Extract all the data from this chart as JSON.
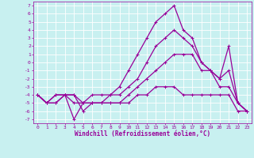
{
  "xlabel": "Windchill (Refroidissement éolien,°C)",
  "bg_color": "#c8f0f0",
  "grid_color": "#ffffff",
  "line_color": "#990099",
  "xlim": [
    -0.5,
    23.5
  ],
  "ylim": [
    -7.5,
    7.5
  ],
  "xticks": [
    0,
    1,
    2,
    3,
    4,
    5,
    6,
    7,
    8,
    9,
    10,
    11,
    12,
    13,
    14,
    15,
    16,
    17,
    18,
    19,
    20,
    21,
    22,
    23
  ],
  "yticks": [
    -7,
    -6,
    -5,
    -4,
    -3,
    -2,
    -1,
    0,
    1,
    2,
    3,
    4,
    5,
    6,
    7
  ],
  "line1_x": [
    0,
    1,
    2,
    3,
    4,
    5,
    6,
    7,
    8,
    9,
    10,
    11,
    12,
    13,
    14,
    15,
    16,
    17,
    18,
    19,
    20,
    21,
    22,
    23
  ],
  "line1_y": [
    -4,
    -5,
    -5,
    -4,
    -4,
    -6,
    -5,
    -5,
    -5,
    -5,
    -5,
    -4,
    -4,
    -3,
    -3,
    -3,
    -4,
    -4,
    -4,
    -4,
    -4,
    -4,
    -6,
    -6
  ],
  "line2_x": [
    0,
    1,
    2,
    3,
    4,
    5,
    6,
    7,
    8,
    9,
    10,
    11,
    12,
    13,
    14,
    15,
    16,
    17,
    18,
    19,
    20,
    21,
    22,
    23
  ],
  "line2_y": [
    -4,
    -5,
    -5,
    -4,
    -5,
    -5,
    -5,
    -5,
    -5,
    -5,
    -4,
    -3,
    -2,
    -1,
    0,
    1,
    1,
    1,
    -1,
    -1,
    -3,
    -3,
    -5,
    -6
  ],
  "line3_x": [
    0,
    1,
    2,
    3,
    4,
    5,
    6,
    7,
    8,
    9,
    10,
    11,
    12,
    13,
    14,
    15,
    16,
    17,
    18,
    19,
    20,
    21,
    22,
    23
  ],
  "line3_y": [
    -4,
    -5,
    -4,
    -4,
    -4,
    -5,
    -5,
    -5,
    -4,
    -4,
    -3,
    -2,
    0,
    2,
    3,
    4,
    3,
    2,
    0,
    -1,
    -2,
    -1,
    -5,
    -6
  ],
  "line4_x": [
    0,
    1,
    2,
    3,
    4,
    5,
    6,
    7,
    8,
    9,
    10,
    11,
    12,
    13,
    14,
    15,
    16,
    17,
    18,
    19,
    20,
    21,
    22,
    23
  ],
  "line4_y": [
    -4,
    -5,
    -4,
    -4,
    -7,
    -5,
    -4,
    -4,
    -4,
    -3,
    -1,
    1,
    3,
    5,
    6,
    7,
    4,
    3,
    0,
    -1,
    -2,
    2,
    -5,
    -6
  ]
}
